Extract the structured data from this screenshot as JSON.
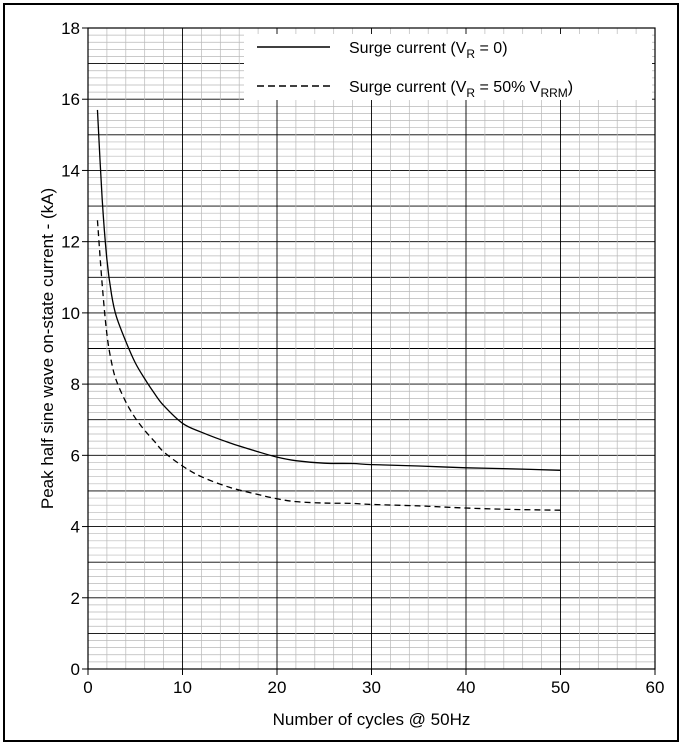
{
  "chart_data": {
    "type": "line",
    "xlabel": "Number of cycles @ 50Hz",
    "ylabel": "Peak half sine wave on-state current - (kA)",
    "xlim": [
      0,
      60
    ],
    "ylim": [
      0,
      18
    ],
    "xticks": [
      "0",
      "10",
      "20",
      "30",
      "40",
      "50",
      "60"
    ],
    "yticks": [
      "0",
      "2",
      "4",
      "6",
      "8",
      "10",
      "12",
      "14",
      "16",
      "18"
    ],
    "grid": true,
    "legend_position": "top-right",
    "series": [
      {
        "name": "Surge current (V",
        "name_sub": "R",
        "name_tail": " = 0)",
        "style": "solid",
        "x": [
          1,
          1.5,
          2,
          2.5,
          3,
          4,
          5,
          6,
          7,
          8,
          10,
          12,
          15,
          18,
          20,
          22,
          25,
          28,
          30,
          35,
          40,
          45,
          50
        ],
        "y": [
          15.7,
          13.2,
          11.5,
          10.5,
          9.9,
          9.2,
          8.6,
          8.15,
          7.75,
          7.4,
          6.9,
          6.65,
          6.35,
          6.1,
          5.95,
          5.85,
          5.78,
          5.77,
          5.74,
          5.7,
          5.65,
          5.62,
          5.58
        ]
      },
      {
        "name": "Surge current (V",
        "name_sub": "R",
        "name_mid": " = 50% V",
        "name_sub2": "RRM",
        "name_tail": ")",
        "style": "dashed",
        "x": [
          1,
          1.5,
          2,
          2.5,
          3,
          4,
          5,
          6,
          7,
          8,
          10,
          12,
          15,
          18,
          20,
          22,
          25,
          28,
          30,
          35,
          40,
          45,
          50
        ],
        "y": [
          12.6,
          10.8,
          9.4,
          8.6,
          8.1,
          7.5,
          7.05,
          6.7,
          6.4,
          6.1,
          5.7,
          5.4,
          5.1,
          4.9,
          4.78,
          4.7,
          4.66,
          4.65,
          4.62,
          4.58,
          4.52,
          4.48,
          4.46
        ]
      }
    ]
  }
}
